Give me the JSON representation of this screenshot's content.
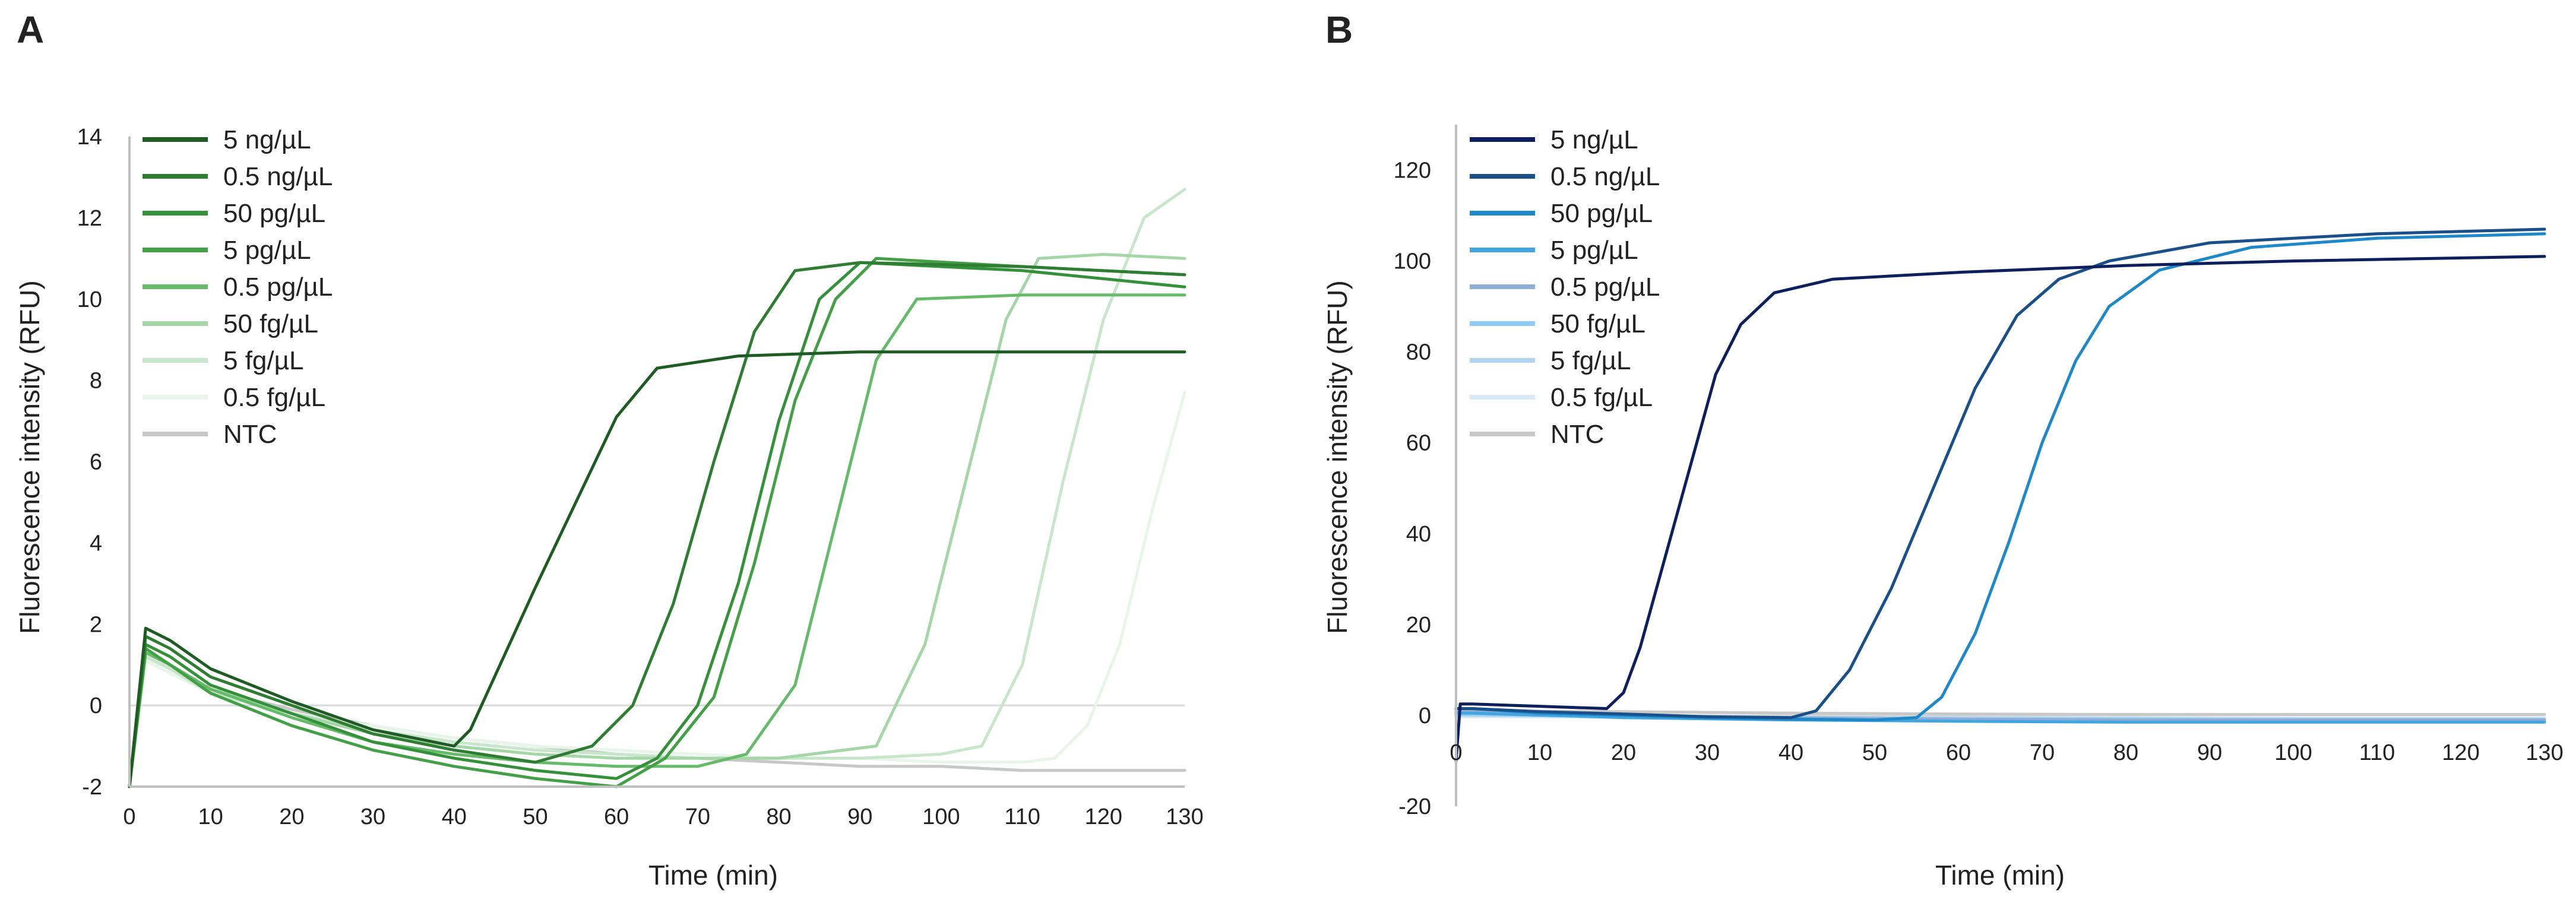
{
  "chart_data": [
    {
      "panel": "A",
      "type": "line",
      "xlabel": "Time (min)",
      "ylabel": "Fluorescence intensity (RFU)",
      "xlim": [
        0,
        130
      ],
      "ylim": [
        -2,
        14
      ],
      "xticks": [
        0,
        10,
        20,
        30,
        40,
        50,
        60,
        70,
        80,
        90,
        100,
        110,
        120,
        130
      ],
      "yticks": [
        -2,
        0,
        2,
        4,
        6,
        8,
        10,
        12,
        14
      ],
      "baseline": 0,
      "legend_position": "top-left",
      "series": [
        {
          "name": "5 ng/µL",
          "color": "#1f5c24",
          "x": [
            0,
            2,
            5,
            10,
            20,
            30,
            40,
            42,
            50,
            55,
            60,
            65,
            75,
            90,
            110,
            130
          ],
          "y": [
            -2,
            1.9,
            1.6,
            0.9,
            0.1,
            -0.6,
            -1.0,
            -0.6,
            2.9,
            5.0,
            7.1,
            8.3,
            8.6,
            8.7,
            8.7,
            8.7
          ]
        },
        {
          "name": "0.5 ng/µL",
          "color": "#2e7d32",
          "x": [
            0,
            2,
            5,
            10,
            20,
            30,
            40,
            50,
            57,
            62,
            67,
            72,
            77,
            82,
            90,
            110,
            130
          ],
          "y": [
            -2,
            1.7,
            1.4,
            0.7,
            0.0,
            -0.7,
            -1.1,
            -1.4,
            -1.0,
            0.0,
            2.5,
            6.0,
            9.2,
            10.7,
            10.9,
            10.8,
            10.6
          ]
        },
        {
          "name": "50 pg/µL",
          "color": "#34913a",
          "x": [
            0,
            2,
            5,
            10,
            20,
            30,
            40,
            50,
            60,
            65,
            70,
            75,
            80,
            85,
            90,
            110,
            130
          ],
          "y": [
            -2,
            1.5,
            1.2,
            0.5,
            -0.2,
            -0.9,
            -1.3,
            -1.6,
            -1.8,
            -1.3,
            0.0,
            3.0,
            7.0,
            10.0,
            10.9,
            10.7,
            10.3
          ]
        },
        {
          "name": "5 pg/µL",
          "color": "#43a047",
          "x": [
            0,
            2,
            5,
            10,
            20,
            30,
            40,
            50,
            60,
            66,
            72,
            77,
            82,
            87,
            92,
            110,
            130
          ],
          "y": [
            -2,
            1.4,
            1.0,
            0.3,
            -0.5,
            -1.1,
            -1.5,
            -1.8,
            -2.0,
            -1.3,
            0.2,
            3.5,
            7.5,
            10.0,
            11.0,
            10.8,
            10.6
          ]
        },
        {
          "name": "0.5 pg/µL",
          "color": "#66bb6a",
          "x": [
            0,
            2,
            5,
            10,
            20,
            30,
            40,
            50,
            60,
            70,
            76,
            82,
            87,
            92,
            97,
            110,
            130
          ],
          "y": [
            -2,
            1.3,
            1.0,
            0.4,
            -0.3,
            -0.9,
            -1.2,
            -1.4,
            -1.5,
            -1.5,
            -1.2,
            0.5,
            4.5,
            8.5,
            10.0,
            10.1,
            10.1
          ]
        },
        {
          "name": "50 fg/µL",
          "color": "#a5d6a7",
          "x": [
            0,
            2,
            5,
            10,
            20,
            30,
            40,
            50,
            60,
            70,
            80,
            92,
            98,
            103,
            108,
            112,
            120,
            130
          ],
          "y": [
            -2,
            1.3,
            1.0,
            0.4,
            -0.2,
            -0.7,
            -1.0,
            -1.2,
            -1.3,
            -1.3,
            -1.3,
            -1.0,
            1.5,
            5.5,
            9.5,
            11.0,
            11.1,
            11.0
          ]
        },
        {
          "name": "5 fg/µL",
          "color": "#c8e6c9",
          "x": [
            0,
            2,
            5,
            10,
            20,
            30,
            40,
            50,
            60,
            70,
            80,
            90,
            100,
            105,
            110,
            115,
            120,
            125,
            130
          ],
          "y": [
            -2,
            1.2,
            0.9,
            0.3,
            -0.2,
            -0.6,
            -0.9,
            -1.1,
            -1.2,
            -1.3,
            -1.3,
            -1.3,
            -1.2,
            -1.0,
            1.0,
            5.5,
            9.5,
            12.0,
            12.7
          ]
        },
        {
          "name": "0.5 fg/µL",
          "color": "#e8f5e9",
          "x": [
            0,
            2,
            5,
            10,
            20,
            30,
            40,
            50,
            60,
            70,
            80,
            90,
            100,
            110,
            114,
            118,
            122,
            126,
            130
          ],
          "y": [
            -2,
            1.1,
            0.8,
            0.3,
            -0.2,
            -0.5,
            -0.8,
            -1.0,
            -1.1,
            -1.2,
            -1.3,
            -1.3,
            -1.4,
            -1.4,
            -1.3,
            -0.5,
            1.5,
            4.8,
            7.7
          ]
        },
        {
          "name": "NTC",
          "color": "#c8c8c8",
          "x": [
            0,
            2,
            5,
            10,
            20,
            30,
            40,
            50,
            60,
            70,
            80,
            90,
            100,
            110,
            120,
            130
          ],
          "y": [
            -2,
            1.2,
            0.9,
            0.4,
            -0.1,
            -0.5,
            -0.8,
            -1.0,
            -1.2,
            -1.3,
            -1.4,
            -1.5,
            -1.5,
            -1.6,
            -1.6,
            -1.6
          ]
        }
      ]
    },
    {
      "panel": "B",
      "type": "line",
      "xlabel": "Time (min)",
      "ylabel": "Fluorescence intensity (RFU)",
      "xlim": [
        0,
        130
      ],
      "ylim": [
        -20,
        130
      ],
      "xticks": [
        0,
        10,
        20,
        30,
        40,
        50,
        60,
        70,
        80,
        90,
        100,
        110,
        120,
        130
      ],
      "yticks": [
        -20,
        0,
        20,
        40,
        60,
        80,
        100,
        120
      ],
      "baseline": 0,
      "legend_position": "top-left",
      "series": [
        {
          "name": "5 ng/µL",
          "color": "#0d1f5c",
          "x": [
            0,
            0.5,
            2,
            10,
            18,
            20,
            22,
            25,
            28,
            31,
            34,
            38,
            45,
            60,
            80,
            100,
            130
          ],
          "y": [
            -10,
            2.5,
            2.5,
            2.0,
            1.5,
            5,
            15,
            35,
            55,
            75,
            86,
            93,
            96,
            97.5,
            99,
            100,
            101
          ]
        },
        {
          "name": "0.5 ng/µL",
          "color": "#1a4f8a",
          "x": [
            0,
            2,
            10,
            20,
            30,
            40,
            43,
            47,
            52,
            57,
            62,
            67,
            72,
            78,
            90,
            110,
            130
          ],
          "y": [
            1.5,
            1.5,
            0.8,
            0.3,
            -0.3,
            -0.5,
            1,
            10,
            28,
            50,
            72,
            88,
            96,
            100,
            104,
            106,
            107
          ]
        },
        {
          "name": "50 pg/µL",
          "color": "#1e88c8",
          "x": [
            0,
            2,
            10,
            20,
            30,
            40,
            50,
            55,
            58,
            62,
            66,
            70,
            74,
            78,
            84,
            95,
            110,
            130
          ],
          "y": [
            1.5,
            1.5,
            0.5,
            0,
            -0.5,
            -0.8,
            -1,
            -0.5,
            4,
            18,
            38,
            60,
            78,
            90,
            98,
            103,
            105,
            106
          ]
        },
        {
          "name": "5 pg/µL",
          "color": "#42a5e0",
          "x": [
            0,
            2,
            20,
            40,
            60,
            80,
            100,
            130
          ],
          "y": [
            0.5,
            0.5,
            -0.5,
            -1,
            -1.3,
            -1.5,
            -1.5,
            -1.5
          ]
        },
        {
          "name": "0.5 pg/µL",
          "color": "#8eaed6",
          "x": [
            0,
            2,
            20,
            40,
            60,
            80,
            100,
            130
          ],
          "y": [
            0.8,
            0.8,
            0,
            -0.5,
            -0.8,
            -1,
            -1,
            -1
          ]
        },
        {
          "name": "50 fg/µL",
          "color": "#90caf9",
          "x": [
            0,
            2,
            20,
            40,
            60,
            80,
            100,
            130
          ],
          "y": [
            0.3,
            0.3,
            -0.3,
            -0.6,
            -0.8,
            -0.9,
            -1,
            -1
          ]
        },
        {
          "name": "5 fg/µL",
          "color": "#b3d4ee",
          "x": [
            0,
            2,
            20,
            40,
            60,
            80,
            100,
            130
          ],
          "y": [
            0,
            0,
            -0.2,
            -0.4,
            -0.5,
            -0.6,
            -0.7,
            -0.7
          ]
        },
        {
          "name": "0.5 fg/µL",
          "color": "#d6eaf8",
          "x": [
            0,
            2,
            20,
            40,
            60,
            80,
            100,
            130
          ],
          "y": [
            -0.3,
            -0.3,
            -0.4,
            -0.5,
            -0.6,
            -0.6,
            -0.7,
            -0.7
          ]
        },
        {
          "name": "NTC",
          "color": "#c8c8c8",
          "x": [
            0,
            2,
            20,
            40,
            60,
            80,
            100,
            130
          ],
          "y": [
            1.0,
            1.0,
            0.8,
            0.5,
            0.3,
            0.2,
            0.2,
            0.2
          ]
        }
      ]
    }
  ]
}
